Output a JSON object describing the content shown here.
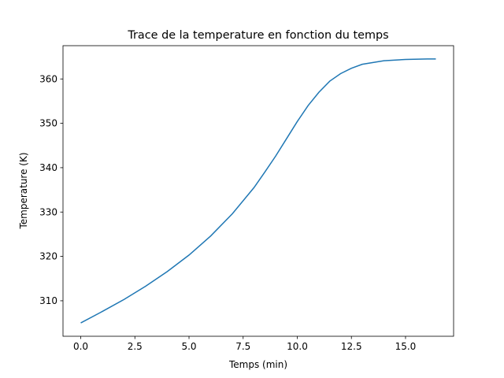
{
  "chart_data": {
    "type": "line",
    "title": "Trace de la temperature en fonction du temps",
    "xlabel": "Temps (min)",
    "ylabel": "Temperature (K)",
    "x": [
      0,
      1,
      2,
      3,
      4,
      5,
      6,
      7,
      8,
      8.5,
      9,
      9.5,
      10,
      10.5,
      11,
      11.5,
      12,
      12.5,
      13,
      14,
      15,
      16,
      16.4
    ],
    "series": [
      {
        "name": "Temperature",
        "color": "#1f77b4",
        "values": [
          305,
          307.6,
          310.3,
          313.3,
          316.6,
          320.3,
          324.6,
          329.6,
          335.5,
          339,
          342.6,
          346.5,
          350.4,
          354,
          357,
          359.5,
          361.2,
          362.4,
          363.3,
          364.1,
          364.4,
          364.5,
          364.5
        ]
      }
    ],
    "xlim": [
      -0.82,
      17.22
    ],
    "ylim": [
      302,
      367.5
    ],
    "xticks": [
      {
        "value": 0,
        "label": "0.0"
      },
      {
        "value": 2.5,
        "label": "2.5"
      },
      {
        "value": 5,
        "label": "5.0"
      },
      {
        "value": 7.5,
        "label": "7.5"
      },
      {
        "value": 10,
        "label": "10.0"
      },
      {
        "value": 12.5,
        "label": "12.5"
      },
      {
        "value": 15,
        "label": "15.0"
      }
    ],
    "yticks": [
      310,
      320,
      330,
      340,
      350,
      360
    ],
    "grid": false
  }
}
